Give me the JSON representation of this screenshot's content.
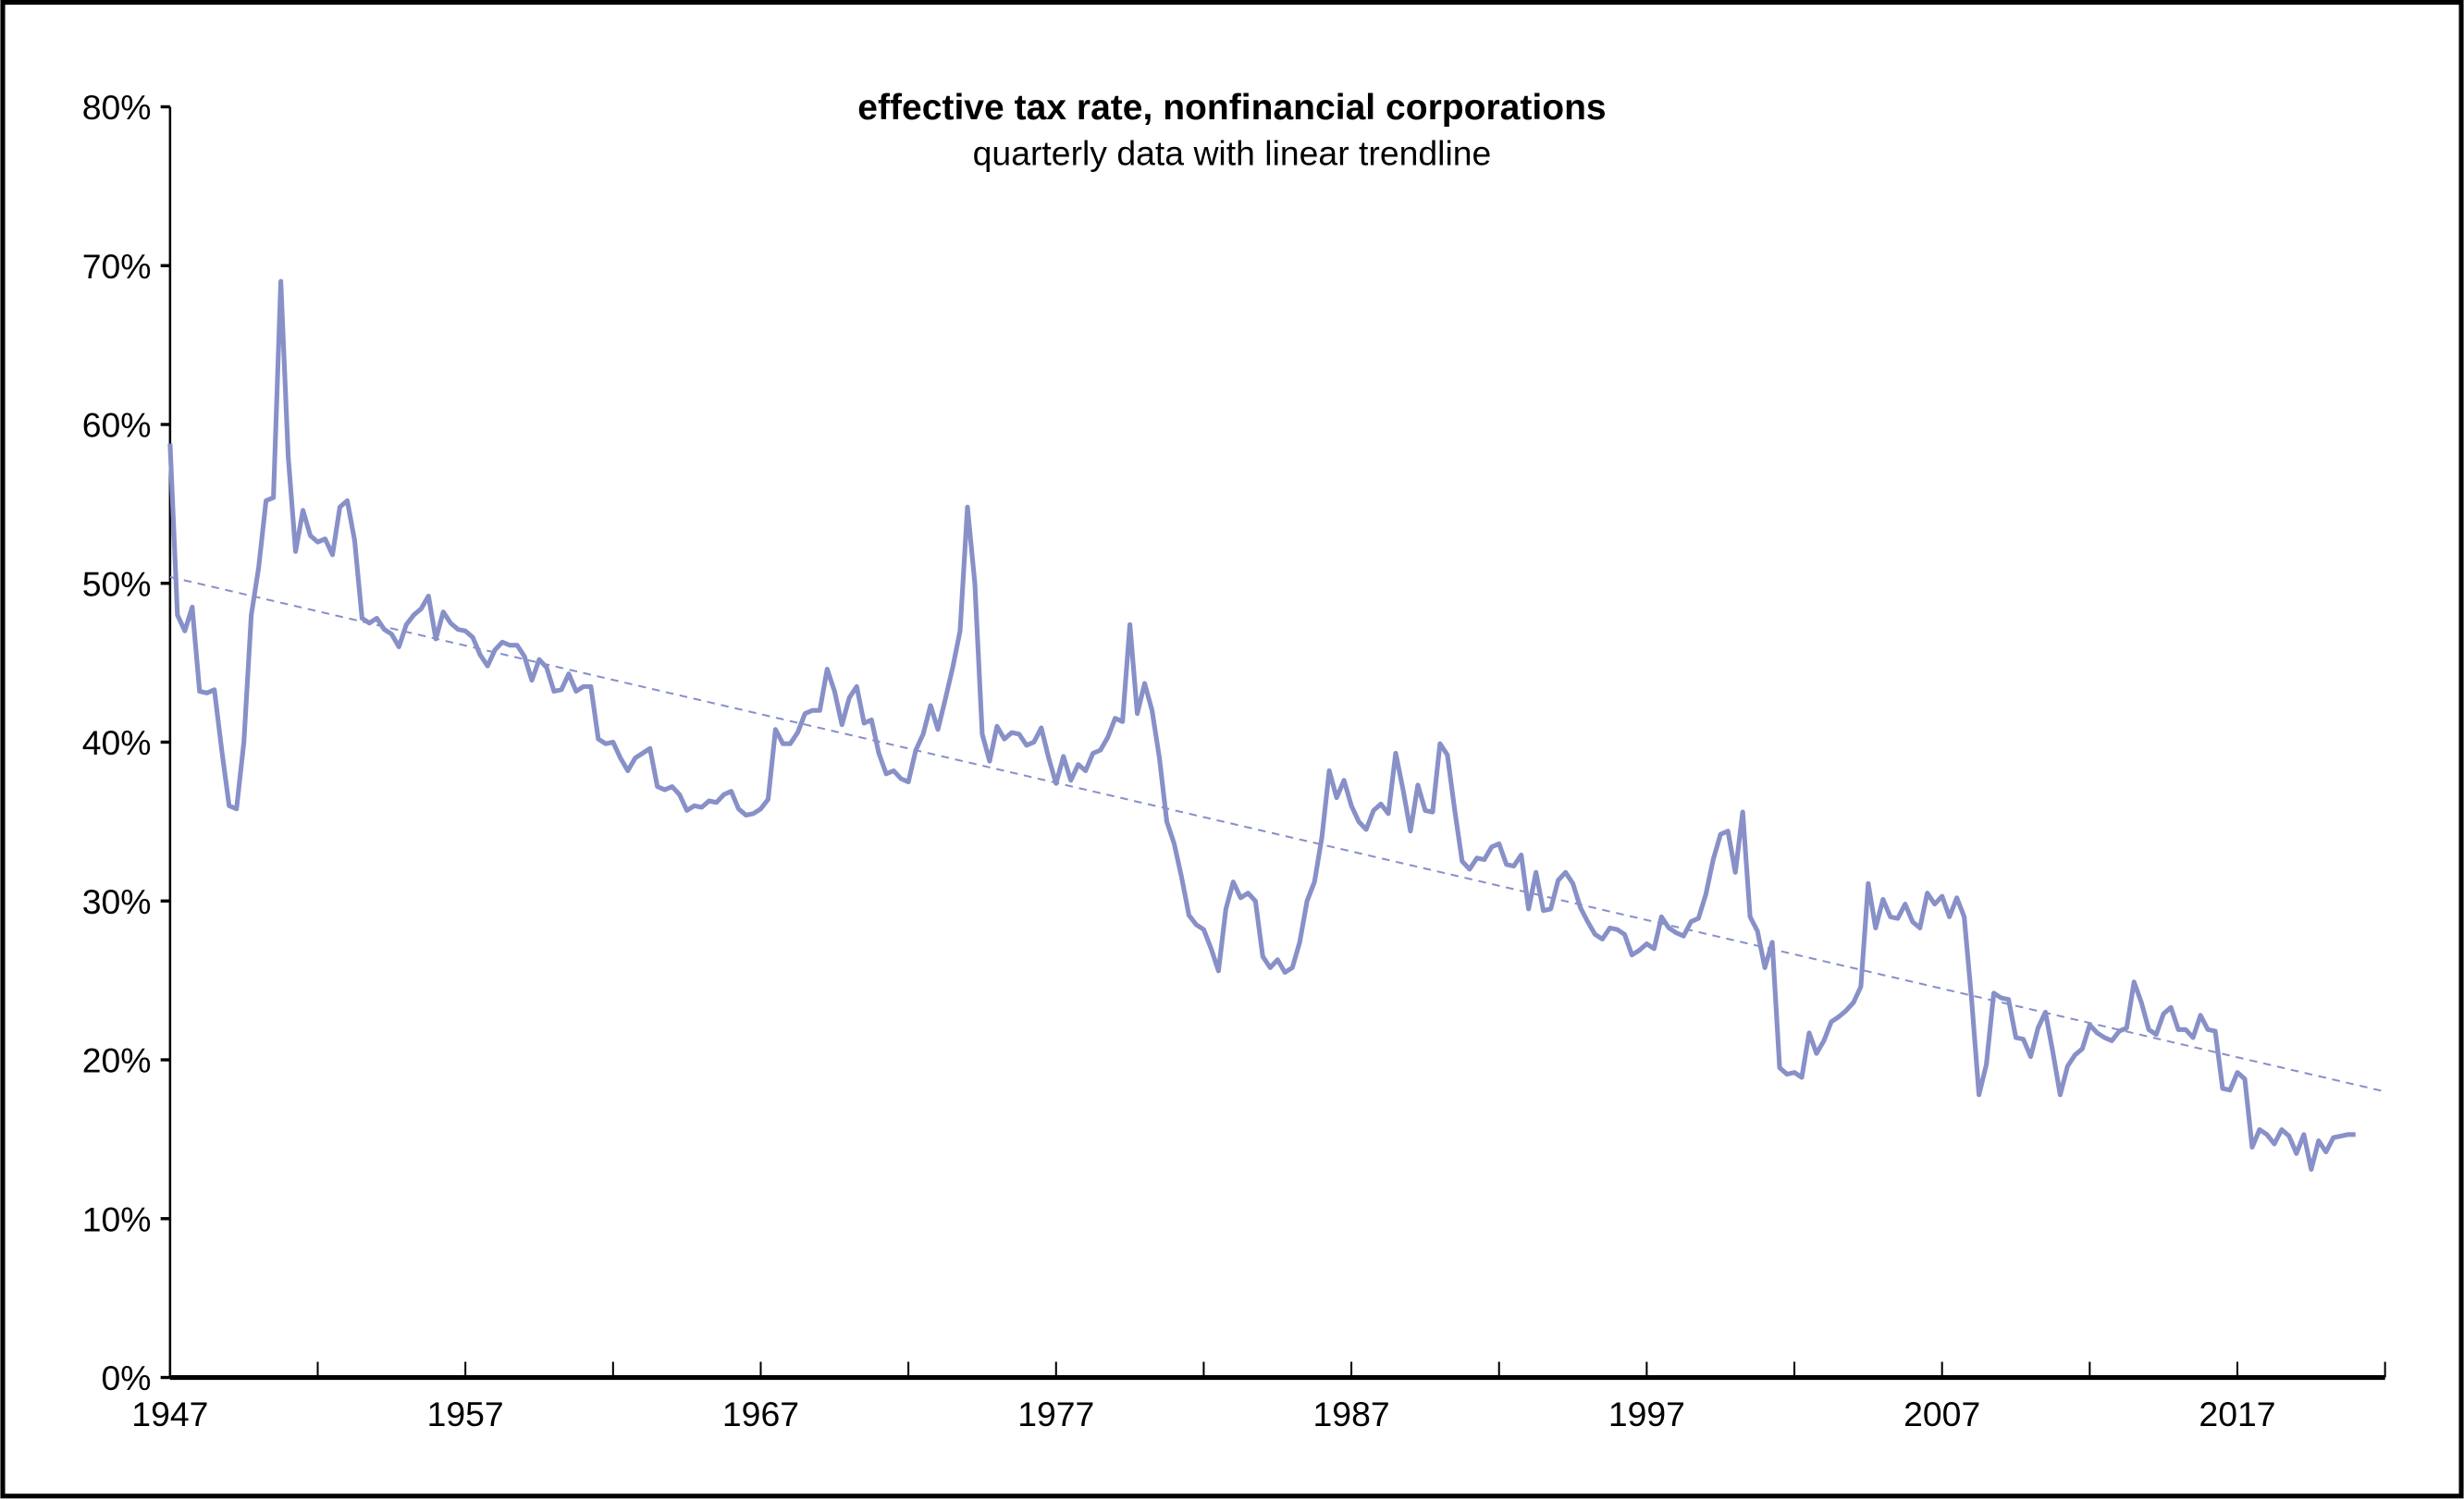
{
  "chart_data": {
    "type": "line",
    "title": "effective tax rate, nonfinancial corporations",
    "subtitle": "quarterly data with linear trendline",
    "xlabel": "",
    "ylabel": "",
    "x_start": "1947Q1",
    "frequency": "quarterly",
    "xlim": [
      1947,
      2022
    ],
    "ylim": [
      0,
      80
    ],
    "y_ticks": [
      "0%",
      "10%",
      "20%",
      "30%",
      "40%",
      "50%",
      "60%",
      "70%",
      "80%"
    ],
    "x_ticks": [
      "1947",
      "1957",
      "1967",
      "1977",
      "1987",
      "1997",
      "2007",
      "2017"
    ],
    "grid": false,
    "legend": "none",
    "colors": {
      "series": "#8890c8",
      "trendline": "#8890c8",
      "axis": "#000000"
    },
    "series": [
      {
        "values": [
          58.8,
          48,
          47,
          48.5,
          43.2,
          43.1,
          43.3,
          39.5,
          36,
          35.8,
          40,
          48,
          51,
          55.2,
          55.4,
          69,
          58,
          52,
          54.6,
          53,
          52.6,
          52.8,
          51.8,
          54.8,
          55.2,
          52.7,
          47.8,
          47.5,
          47.8,
          47.1,
          46.8,
          46,
          47.4,
          48,
          48.4,
          49.2,
          46.5,
          48.2,
          47.5,
          47.1,
          47,
          46.6,
          45.5,
          44.8,
          45.8,
          46.3,
          46.1,
          46.1,
          45.4,
          43.9,
          45.2,
          44.7,
          43.2,
          43.3,
          44.3,
          43.2,
          43.5,
          43.5,
          40.2,
          39.9,
          40,
          39,
          38.2,
          39,
          39.3,
          39.6,
          37.2,
          37,
          37.2,
          36.7,
          35.7,
          36,
          35.9,
          36.3,
          36.2,
          36.7,
          36.9,
          35.8,
          35.4,
          35.5,
          35.8,
          36.4,
          40.8,
          39.9,
          39.9,
          40.6,
          41.8,
          42,
          42,
          44.6,
          43.2,
          41.1,
          42.8,
          43.5,
          41.2,
          41.4,
          39.3,
          38,
          38.2,
          37.7,
          37.5,
          39.5,
          40.5,
          42.3,
          40.8,
          42.7,
          44.7,
          47,
          54.8,
          50,
          40.5,
          38.8,
          41,
          40.2,
          40.6,
          40.5,
          39.8,
          40,
          40.9,
          39,
          37.4,
          39.1,
          37.6,
          38.6,
          38.2,
          39.3,
          39.5,
          40.3,
          41.5,
          41.3,
          47.4,
          41.8,
          43.7,
          42,
          39,
          35,
          33.6,
          31.5,
          29.1,
          28.5,
          28.2,
          27,
          25.6,
          29.5,
          31.2,
          30.2,
          30.5,
          30,
          26.5,
          25.8,
          26.3,
          25.5,
          25.8,
          27.4,
          30,
          31.2,
          34,
          38.2,
          36.5,
          37.6,
          36,
          35,
          34.5,
          35.7,
          36.1,
          35.5,
          39.3,
          37,
          34.4,
          37.3,
          35.7,
          35.6,
          39.9,
          39.2,
          35.7,
          32.5,
          32,
          32.7,
          32.6,
          33.4,
          33.6,
          32.3,
          32.2,
          32.9,
          29.5,
          31.8,
          29.4,
          29.5,
          31.3,
          31.8,
          31.1,
          29.6,
          28.7,
          27.9,
          27.6,
          28.3,
          28.2,
          27.9,
          26.6,
          26.9,
          27.3,
          27,
          29,
          28.3,
          28,
          27.8,
          28.7,
          28.9,
          30.4,
          32.6,
          34.2,
          34.4,
          31.8,
          35.6,
          29,
          28.1,
          25.8,
          27.4,
          19.5,
          19.1,
          19.2,
          18.9,
          21.7,
          20.4,
          21.2,
          22.4,
          22.7,
          23.1,
          23.6,
          24.6,
          31.1,
          28.3,
          30.1,
          29,
          28.9,
          29.8,
          28.7,
          28.3,
          30.5,
          29.8,
          30.3,
          29,
          30.2,
          29,
          23.8,
          17.8,
          19.7,
          24.2,
          23.9,
          23.8,
          21.4,
          21.3,
          20.2,
          22,
          23,
          20.5,
          17.8,
          19.6,
          20.3,
          20.7,
          22.2,
          21.7,
          21.4,
          21.2,
          21.8,
          22,
          24.9,
          23.6,
          21.9,
          21.6,
          22.9,
          23.3,
          21.9,
          21.9,
          21.4,
          22.8,
          21.9,
          21.8,
          18.2,
          18.1,
          19.2,
          18.8,
          14.5,
          15.6,
          15.3,
          14.7,
          15.6,
          15.2,
          14.1,
          15.3,
          13.1,
          14.9,
          14.2,
          15.1,
          15.2,
          15.3,
          15.3
        ]
      }
    ],
    "trendline": {
      "type": "linear",
      "start": [
        1947,
        50.4
      ],
      "end": [
        2022,
        18.0
      ]
    }
  }
}
